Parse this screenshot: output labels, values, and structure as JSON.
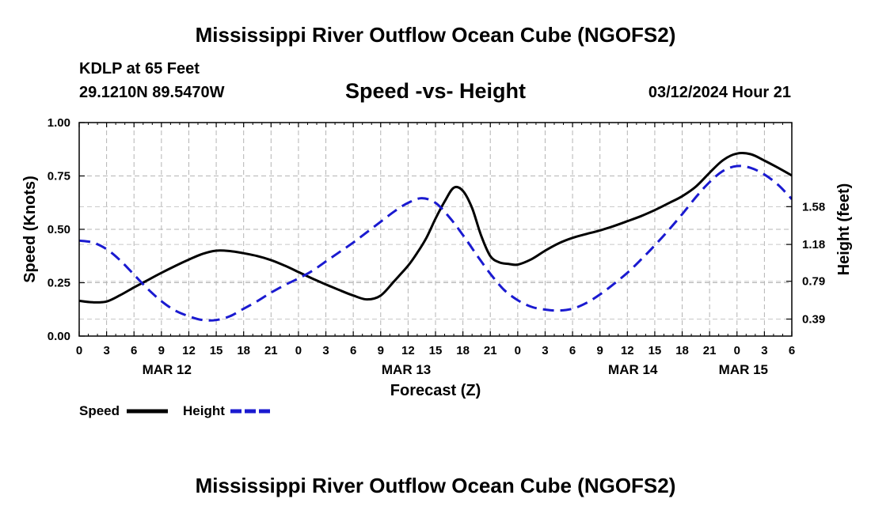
{
  "header": {
    "title": "Mississippi River Outflow Ocean Cube (NGOFS2)",
    "station": "KDLP at 65 Feet",
    "coords": "29.1210N  89.5470W",
    "subtitle": "Speed -vs- Height",
    "datetime": "03/12/2024 Hour 21"
  },
  "footer": {
    "title": "Mississippi River Outflow Ocean Cube (NGOFS2)"
  },
  "chart_data": {
    "type": "line",
    "title": "Speed -vs- Height",
    "xlabel": "Forecast (Z)",
    "ylabel": "Speed (Knots)",
    "y2label": "Height (feet)",
    "xlim": [
      0,
      78
    ],
    "ylim": [
      0,
      1.0
    ],
    "y2lim": [
      0.21,
      2.47
    ],
    "grid": true,
    "x_ticks": [
      0,
      3,
      6,
      9,
      12,
      15,
      18,
      21,
      24,
      27,
      30,
      33,
      36,
      39,
      42,
      45,
      48,
      51,
      54,
      57,
      60,
      63,
      66,
      69,
      72,
      75,
      78
    ],
    "x_tick_labels": [
      "0",
      "3",
      "6",
      "9",
      "12",
      "15",
      "18",
      "21",
      "0",
      "3",
      "6",
      "9",
      "12",
      "15",
      "18",
      "21",
      "0",
      "3",
      "6",
      "9",
      "12",
      "15",
      "18",
      "21",
      "0",
      "3",
      "6"
    ],
    "date_labels": [
      {
        "label": "MAR 12",
        "x": 9.6
      },
      {
        "label": "MAR 13",
        "x": 35.8
      },
      {
        "label": "MAR 14",
        "x": 60.6
      },
      {
        "label": "MAR 15",
        "x": 72.7
      }
    ],
    "y_ticks": [
      0.0,
      0.25,
      0.5,
      0.75,
      1.0
    ],
    "y_tick_labels": [
      "0.00",
      "0.25",
      "0.50",
      "0.75",
      "1.00"
    ],
    "y2_ticks": [
      0.39,
      0.79,
      1.18,
      1.58
    ],
    "y2_tick_labels": [
      "0.39",
      "0.79",
      "1.18",
      "1.58"
    ],
    "legend": [
      {
        "label": "Speed",
        "color": "#000000",
        "dash": "solid"
      },
      {
        "label": "Height",
        "color": "#1a1ad0",
        "dash": "dashed"
      }
    ],
    "series": [
      {
        "name": "Speed",
        "axis": "left",
        "color": "#000000",
        "x": [
          0,
          1.5,
          3,
          4.5,
          6,
          7.5,
          9,
          10.5,
          12,
          13.5,
          15,
          16.5,
          18,
          19.5,
          21,
          22.5,
          24,
          25.5,
          27,
          28.5,
          30,
          31.5,
          33,
          34.5,
          36,
          37,
          38,
          39,
          40,
          41,
          42,
          43,
          44,
          45,
          46,
          47,
          48,
          49.5,
          51,
          52.5,
          54,
          55.5,
          57,
          58.5,
          60,
          61.5,
          63,
          64.5,
          66,
          67.5,
          69,
          70.5,
          72,
          73.5,
          75,
          76.5,
          78
        ],
        "values": [
          0.165,
          0.158,
          0.162,
          0.192,
          0.228,
          0.262,
          0.296,
          0.328,
          0.358,
          0.385,
          0.4,
          0.398,
          0.388,
          0.375,
          0.356,
          0.33,
          0.3,
          0.27,
          0.242,
          0.215,
          0.19,
          0.172,
          0.19,
          0.258,
          0.33,
          0.39,
          0.46,
          0.55,
          0.63,
          0.695,
          0.68,
          0.6,
          0.47,
          0.375,
          0.345,
          0.338,
          0.335,
          0.36,
          0.4,
          0.435,
          0.46,
          0.478,
          0.495,
          0.515,
          0.538,
          0.562,
          0.59,
          0.622,
          0.655,
          0.7,
          0.765,
          0.825,
          0.855,
          0.852,
          0.822,
          0.788,
          0.752
        ]
      },
      {
        "name": "Height",
        "axis": "right",
        "color": "#1a1ad0",
        "x": [
          0,
          1.5,
          3,
          4.5,
          6,
          7.5,
          9,
          10.5,
          12,
          13.5,
          15,
          16.5,
          18,
          19.5,
          21,
          22.5,
          24,
          25.5,
          27,
          28.5,
          30,
          31.5,
          33,
          34.5,
          36,
          37.5,
          39,
          40.5,
          42,
          43.5,
          45,
          46.5,
          48,
          49.5,
          51,
          52.5,
          54,
          55.5,
          57,
          58.5,
          60,
          61.5,
          63,
          64.5,
          66,
          67.5,
          69,
          70.5,
          72,
          73.5,
          75,
          76.5,
          78
        ],
        "values": [
          1.22,
          1.2,
          1.13,
          1.01,
          0.86,
          0.71,
          0.58,
          0.48,
          0.42,
          0.38,
          0.38,
          0.42,
          0.5,
          0.58,
          0.67,
          0.75,
          0.82,
          0.9,
          1.0,
          1.1,
          1.2,
          1.31,
          1.42,
          1.53,
          1.62,
          1.67,
          1.62,
          1.47,
          1.28,
          1.07,
          0.87,
          0.7,
          0.59,
          0.52,
          0.49,
          0.48,
          0.5,
          0.56,
          0.65,
          0.76,
          0.88,
          1.02,
          1.17,
          1.33,
          1.5,
          1.68,
          1.84,
          1.96,
          2.01,
          1.99,
          1.92,
          1.81,
          1.66
        ]
      }
    ]
  }
}
